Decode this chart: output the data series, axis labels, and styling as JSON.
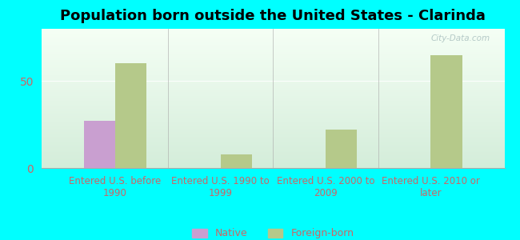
{
  "title": "Population born outside the United States - Clarinda",
  "categories": [
    "Entered U.S. before\n1990",
    "Entered U.S. 1990 to\n1999",
    "Entered U.S. 2000 to\n2009",
    "Entered U.S. 2010 or\nlater"
  ],
  "native_values": [
    27,
    0,
    0,
    0
  ],
  "foreign_born_values": [
    60,
    8,
    22,
    65
  ],
  "native_color": "#c99fd0",
  "foreign_born_color": "#b5c98a",
  "background_color": "#00ffff",
  "plot_bg_top": "#f5fff5",
  "plot_bg_bottom": "#d4edda",
  "ylim": [
    0,
    80
  ],
  "yticks": [
    0,
    50
  ],
  "bar_width": 0.3,
  "watermark": "City-Data.com",
  "title_fontsize": 13,
  "tick_label_fontsize": 8.5,
  "tick_color": "#cc6666",
  "legend_labels": [
    "Native",
    "Foreign-born"
  ]
}
